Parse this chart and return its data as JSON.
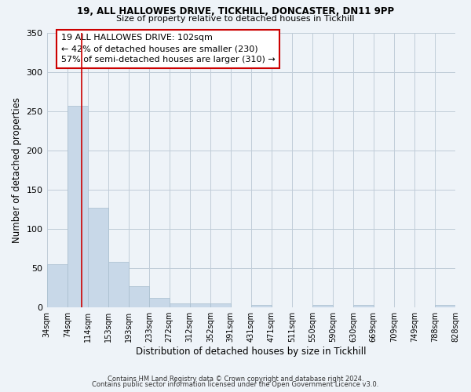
{
  "title1": "19, ALL HALLOWES DRIVE, TICKHILL, DONCASTER, DN11 9PP",
  "title2": "Size of property relative to detached houses in Tickhill",
  "xlabel": "Distribution of detached houses by size in Tickhill",
  "ylabel": "Number of detached properties",
  "bar_color": "#c8d8e8",
  "bar_edgecolor": "#a8bece",
  "bg_color": "#eef3f8",
  "grid_color": "#c0ccd8",
  "vline_x": 102,
  "vline_color": "#cc0000",
  "annotation_line1": "19 ALL HALLOWES DRIVE: 102sqm",
  "annotation_line2": "← 42% of detached houses are smaller (230)",
  "annotation_line3": "57% of semi-detached houses are larger (310) →",
  "annotation_box_color": "#cc0000",
  "bin_edges": [
    34,
    74,
    114,
    153,
    193,
    233,
    272,
    312,
    352,
    391,
    431,
    471,
    511,
    550,
    590,
    630,
    669,
    709,
    749,
    788,
    828
  ],
  "bin_labels": [
    "34sqm",
    "74sqm",
    "114sqm",
    "153sqm",
    "193sqm",
    "233sqm",
    "272sqm",
    "312sqm",
    "352sqm",
    "391sqm",
    "431sqm",
    "471sqm",
    "511sqm",
    "550sqm",
    "590sqm",
    "630sqm",
    "669sqm",
    "709sqm",
    "749sqm",
    "788sqm",
    "828sqm"
  ],
  "bar_heights": [
    55,
    257,
    127,
    58,
    27,
    12,
    5,
    5,
    5,
    0,
    3,
    0,
    0,
    3,
    0,
    3,
    0,
    0,
    0,
    3
  ],
  "ylim": [
    0,
    350
  ],
  "yticks": [
    0,
    50,
    100,
    150,
    200,
    250,
    300,
    350
  ],
  "footer1": "Contains HM Land Registry data © Crown copyright and database right 2024.",
  "footer2": "Contains public sector information licensed under the Open Government Licence v3.0."
}
